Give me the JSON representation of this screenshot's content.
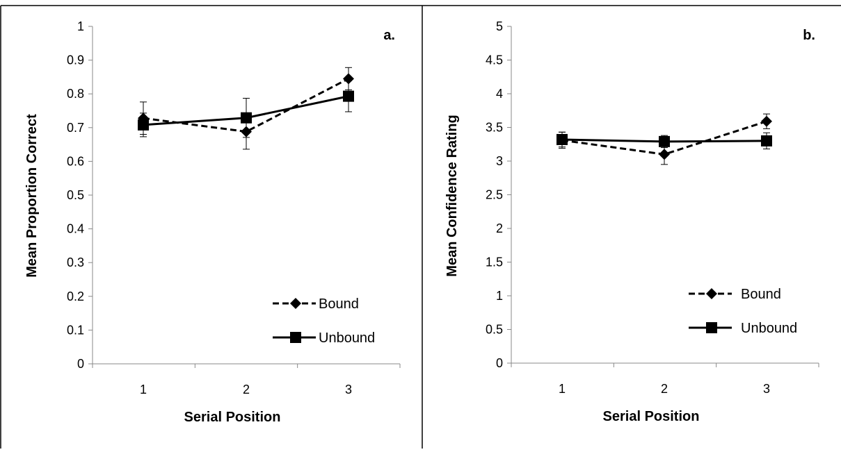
{
  "chart_data": [
    {
      "panel_label": "a.",
      "type": "line",
      "xlabel": "Serial Position",
      "ylabel": "Mean Proportion Correct",
      "categories": [
        "1",
        "2",
        "3"
      ],
      "ylim": [
        0,
        1
      ],
      "yticks": [
        "0",
        "0.1",
        "0.2",
        "0.3",
        "0.4",
        "0.5",
        "0.6",
        "0.7",
        "0.8",
        "0.9",
        "1"
      ],
      "ytick_values": [
        0,
        0.1,
        0.2,
        0.3,
        0.4,
        0.5,
        0.6,
        0.7,
        0.8,
        0.9,
        1
      ],
      "legend_position": "bottom-right",
      "series": [
        {
          "name": "Bound",
          "style": "dashed",
          "marker": "diamond",
          "values": [
            0.728,
            0.688,
            0.845
          ],
          "errors": [
            0.048,
            0.052,
            0.033
          ]
        },
        {
          "name": "Unbound",
          "style": "solid",
          "marker": "square",
          "values": [
            0.708,
            0.729,
            0.793
          ],
          "errors": [
            0.035,
            0.058,
            0.046
          ]
        }
      ]
    },
    {
      "panel_label": "b.",
      "type": "line",
      "xlabel": "Serial Position",
      "ylabel": "Mean Confidence Rating",
      "categories": [
        "1",
        "2",
        "3"
      ],
      "ylim": [
        0,
        5
      ],
      "yticks": [
        "0",
        "0.5",
        "1",
        "1.5",
        "2",
        "2.5",
        "3",
        "3.5",
        "4",
        "4.5",
        "5"
      ],
      "ytick_values": [
        0,
        0.5,
        1,
        1.5,
        2,
        2.5,
        3,
        3.5,
        4,
        4.5,
        5
      ],
      "legend_position": "bottom-right",
      "series": [
        {
          "name": "Bound",
          "style": "dashed",
          "marker": "diamond",
          "values": [
            3.31,
            3.1,
            3.59
          ],
          "errors": [
            0.12,
            0.15,
            0.11
          ]
        },
        {
          "name": "Unbound",
          "style": "solid",
          "marker": "square",
          "values": [
            3.32,
            3.29,
            3.3
          ],
          "errors": [
            0.11,
            0.09,
            0.12
          ]
        }
      ]
    }
  ]
}
